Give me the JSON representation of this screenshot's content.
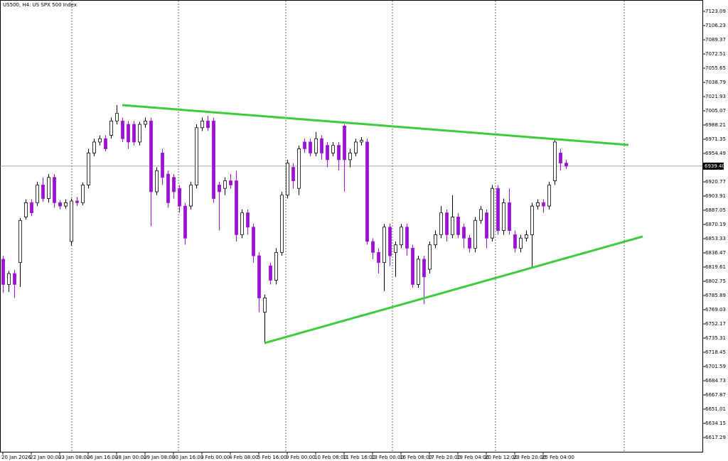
{
  "chart_data": {
    "type": "candlestick",
    "title": "US500, H4:  US SPX 500 Index",
    "categories": [
      "20 Jan 2026",
      null,
      null,
      null,
      null,
      "22 Jan 00:00",
      null,
      null,
      null,
      null,
      "23 Jan 08:00",
      null,
      null,
      null,
      null,
      "26 Jan 16:00",
      null,
      null,
      null,
      null,
      "28 Jan 00:00",
      null,
      null,
      null,
      null,
      "29 Jan 08:00",
      null,
      null,
      null,
      null,
      "30 Jan 16:00",
      null,
      null,
      null,
      null,
      "3 Feb 00:00",
      null,
      null,
      null,
      null,
      "4 Feb 08:00",
      null,
      null,
      null,
      null,
      "5 Feb 16:00",
      null,
      null,
      null,
      null,
      "9 Feb 00:00",
      null,
      null,
      null,
      null,
      "10 Feb 08:00",
      null,
      null,
      null,
      null,
      "11 Feb 16:00",
      null,
      null,
      null,
      null,
      "13 Feb 00:00",
      null,
      null,
      null,
      null,
      "16 Feb 08:00",
      null,
      null,
      null,
      null,
      "17 Feb 20:00",
      null,
      null,
      null,
      null,
      "19 Feb 04:00",
      null,
      null,
      null,
      null,
      "20 Feb 12:00",
      null,
      null,
      null,
      null,
      "23 Feb 20:00",
      null,
      null,
      null,
      null,
      "25 Feb 04:00",
      null,
      null,
      null,
      null
    ],
    "open": [
      6829,
      6799,
      6812,
      6825,
      6879,
      6896,
      6896,
      6917,
      6901,
      6926,
      6896,
      6892,
      6850,
      6898,
      6896,
      6917,
      6955,
      6968,
      6972,
      6976,
      6993,
      6993,
      6989,
      6989,
      6968,
      6989,
      6993,
      6909,
      6955,
      6930,
      6926,
      6913,
      6892,
      6892,
      6917,
      6985,
      6993,
      6993,
      6917,
      6913,
      6922,
      6922,
      6858,
      6884,
      6867,
      6833,
      6766,
      6821,
      6804,
      6837,
      6905,
      6938,
      6913,
      6968,
      6968,
      6955,
      6972,
      6964,
      6955,
      6964,
      6987,
      6947,
      6955,
      6968,
      6968,
      6850,
      6837,
      6825,
      6867,
      6837,
      6846,
      6867,
      6842,
      6799,
      6829,
      6817,
      6846,
      6858,
      6884,
      6858,
      6879,
      6867,
      6854,
      6842,
      6875,
      6884,
      6854,
      6913,
      6863,
      6896,
      6858,
      6842,
      6854,
      6858,
      6892,
      6896,
      6892,
      6922,
      6955,
      6943
    ],
    "high": [
      6833,
      6815,
      6816,
      6878,
      6900,
      6900,
      6921,
      6926,
      6930,
      6930,
      6899,
      6900,
      6901,
      6903,
      6920,
      6960,
      6972,
      6976,
      6976,
      6997,
      7012,
      6997,
      6993,
      6993,
      6992,
      6997,
      6997,
      6938,
      6960,
      6934,
      6930,
      6917,
      6896,
      6921,
      6989,
      6997,
      6999,
      6997,
      6921,
      6926,
      6930,
      6934,
      6888,
      6888,
      6871,
      6837,
      6787,
      6825,
      6842,
      6909,
      6947,
      6943,
      6964,
      6972,
      6972,
      6980,
      6976,
      6968,
      6968,
      6968,
      6989,
      6960,
      6972,
      6974,
      6972,
      6854,
      6842,
      6871,
      6871,
      6850,
      6871,
      6871,
      6846,
      6833,
      6833,
      6850,
      6863,
      6892,
      6888,
      6905,
      6884,
      6871,
      6858,
      6879,
      6892,
      6888,
      6917,
      6917,
      6901,
      6913,
      6863,
      6858,
      6863,
      6896,
      6900,
      6900,
      6921,
      6972,
      6960,
      6947
    ],
    "low": [
      6789,
      6790,
      6783,
      6796,
      6876,
      6880,
      6892,
      6897,
      6896,
      6890,
      6888,
      6889,
      6845,
      6892,
      6893,
      6913,
      6951,
      6964,
      6957,
      6972,
      6989,
      6968,
      6960,
      6964,
      6964,
      6985,
      6868,
      6905,
      6917,
      6890,
      6901,
      6884,
      6846,
      6888,
      6913,
      6981,
      6981,
      6896,
      6863,
      6905,
      6913,
      6850,
      6854,
      6858,
      6825,
      6766,
      6729,
      6799,
      6799,
      6833,
      6901,
      6913,
      6905,
      6955,
      6951,
      6951,
      6947,
      6938,
      6951,
      6934,
      6909,
      6938,
      6951,
      6964,
      6846,
      6829,
      6812,
      6791,
      6821,
      6808,
      6842,
      6833,
      6795,
      6795,
      6776,
      6812,
      6842,
      6854,
      6850,
      6854,
      6854,
      6842,
      6837,
      6837,
      6871,
      6842,
      6850,
      6858,
      6858,
      6858,
      6837,
      6837,
      6850,
      6818,
      6888,
      6884,
      6888,
      6917,
      6934,
      6936
    ],
    "close": [
      6799,
      6812,
      6799,
      6875,
      6896,
      6884,
      6917,
      6901,
      6926,
      6896,
      6892,
      6896,
      6898,
      6896,
      6917,
      6955,
      6968,
      6972,
      6960,
      6993,
      7002,
      6972,
      6968,
      6968,
      6989,
      6993,
      6909,
      6934,
      6926,
      6896,
      6909,
      6892,
      6854,
      6917,
      6985,
      6993,
      6985,
      6901,
      6909,
      6922,
      6917,
      6858,
      6884,
      6867,
      6833,
      6783,
      6783,
      6804,
      6837,
      6905,
      6943,
      6922,
      6960,
      6960,
      6955,
      6972,
      6955,
      6947,
      6964,
      6947,
      6947,
      6955,
      6968,
      6970,
      6850,
      6837,
      6825,
      6867,
      6833,
      6846,
      6867,
      6842,
      6799,
      6829,
      6808,
      6846,
      6858,
      6884,
      6858,
      6879,
      6858,
      6854,
      6842,
      6875,
      6888,
      6854,
      6913,
      6863,
      6896,
      6863,
      6842,
      6854,
      6858,
      6892,
      6896,
      6892,
      6917,
      6968,
      6943,
      6939.4
    ],
    "up_color": "#ffffff",
    "down_color": "#9b12d6",
    "ylim": [
      6600.43,
      7136.56
    ],
    "yticks": [
      6617.29,
      6634.15,
      6651.01,
      6667.87,
      6684.73,
      6701.59,
      6718.45,
      6735.31,
      6752.17,
      6769.03,
      6785.89,
      6802.75,
      6819.61,
      6836.47,
      6853.33,
      6870.19,
      6887.05,
      6903.91,
      6920.77,
      6954.49,
      6971.35,
      6988.21,
      7005.07,
      7021.93,
      7038.79,
      7055.65,
      7072.51,
      7089.37,
      7106.23,
      7123.09
    ],
    "price_line": {
      "value": 6939.4,
      "label": "6939.40"
    },
    "trendlines": [
      {
        "x": [
          21,
          110
        ],
        "y": [
          7011.8,
          6964.6
        ],
        "color": "#3ccc3c"
      },
      {
        "x": [
          46,
          112.5
        ],
        "y": [
          6729.4,
          6855.9
        ],
        "color": "#3ccc3c"
      }
    ]
  }
}
